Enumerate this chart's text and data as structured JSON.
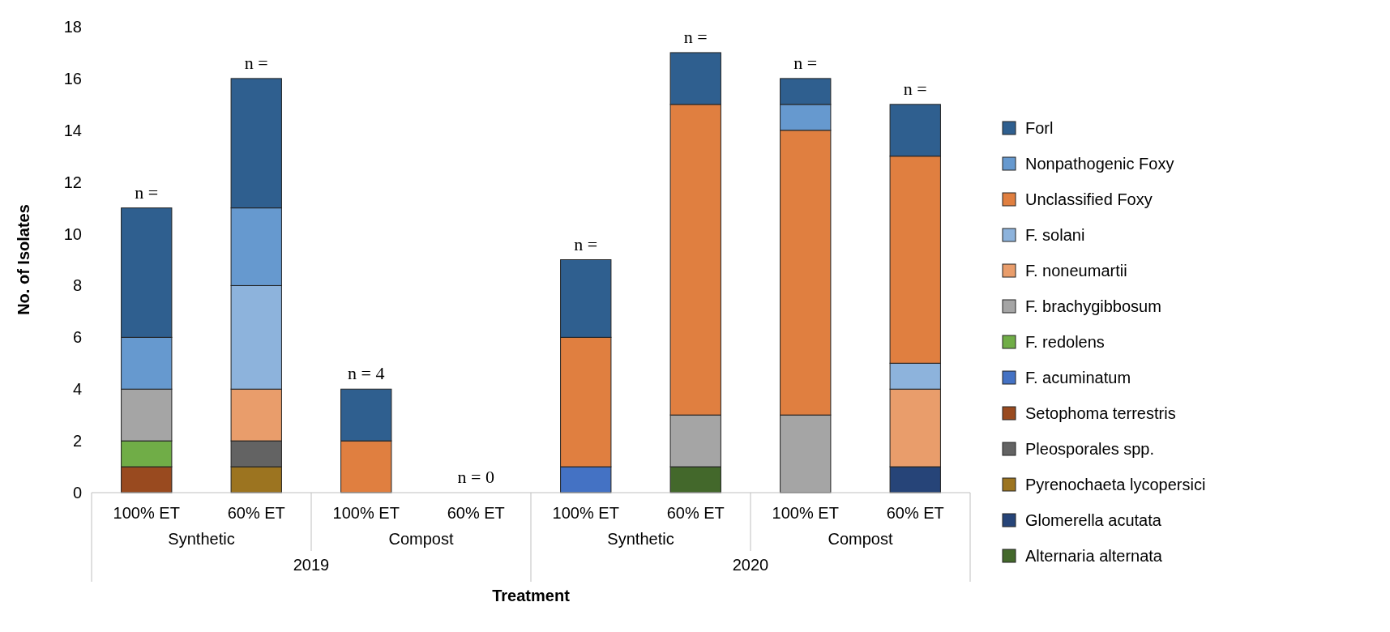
{
  "chart_data": {
    "type": "bar",
    "stacked": true,
    "xlabel": "Treatment",
    "ylabel": "No. of Isolates",
    "categories": [
      "100% ET",
      "60% ET",
      "100% ET",
      "60% ET",
      "100% ET",
      "60% ET",
      "100% ET",
      "60% ET"
    ],
    "annotations": [
      "Synthetic",
      "Compost",
      "Synthetic",
      "Compost",
      "2019",
      "2020"
    ],
    "totals": [
      "n =",
      "n =",
      "n = 4",
      "n = 0",
      "n =",
      "n =",
      "n =",
      "n ="
    ],
    "ylim": [
      0,
      18
    ],
    "yticks": [
      0,
      2,
      4,
      6,
      8,
      10,
      12,
      14,
      16,
      18
    ],
    "grid": false,
    "legend": "right",
    "series": [
      {
        "name": "Alternaria alternata",
        "color": "#43682b",
        "values": [
          0,
          0,
          0,
          0,
          0,
          1,
          0,
          0
        ]
      },
      {
        "name": "Glomerella acutata",
        "color": "#264478",
        "values": [
          0,
          0,
          0,
          0,
          0,
          0,
          0,
          1
        ]
      },
      {
        "name": "Pyrenochaeta lycopersici",
        "color": "#9c7420",
        "values": [
          0,
          1,
          0,
          0,
          0,
          0,
          0,
          0
        ]
      },
      {
        "name": "Pleosporales spp.",
        "color": "#636363",
        "values": [
          0,
          1,
          0,
          0,
          0,
          0,
          0,
          0
        ]
      },
      {
        "name": "Setophoma terrestris",
        "color": "#994a1f",
        "values": [
          1,
          0,
          0,
          0,
          0,
          0,
          0,
          0
        ]
      },
      {
        "name": "F. acuminatum",
        "color": "#4472c4",
        "values": [
          0,
          0,
          0,
          0,
          1,
          0,
          0,
          0
        ]
      },
      {
        "name": "F. redolens",
        "color": "#70ad47",
        "values": [
          1,
          0,
          0,
          0,
          0,
          0,
          0,
          0
        ]
      },
      {
        "name": "F. brachygibbosum",
        "color": "#a5a5a5",
        "values": [
          2,
          0,
          0,
          0,
          0,
          2,
          3,
          0
        ]
      },
      {
        "name": "F. noneumartii",
        "color": "#e99d6b",
        "values": [
          0,
          2,
          0,
          0,
          0,
          0,
          0,
          3
        ]
      },
      {
        "name": "F. solani",
        "color": "#8db3dc",
        "values": [
          0,
          4,
          0,
          0,
          0,
          0,
          0,
          1
        ]
      },
      {
        "name": "Unclassified Foxy",
        "color": "#e07f40",
        "values": [
          0,
          0,
          2,
          0,
          5,
          12,
          11,
          8
        ]
      },
      {
        "name": "Nonpathogenic Foxy",
        "color": "#6699cf",
        "values": [
          2,
          3,
          0,
          0,
          0,
          0,
          1,
          0
        ]
      },
      {
        "name": "Forl",
        "color": "#2f5f8f",
        "values": [
          5,
          5,
          2,
          0,
          3,
          2,
          1,
          2
        ]
      }
    ]
  }
}
